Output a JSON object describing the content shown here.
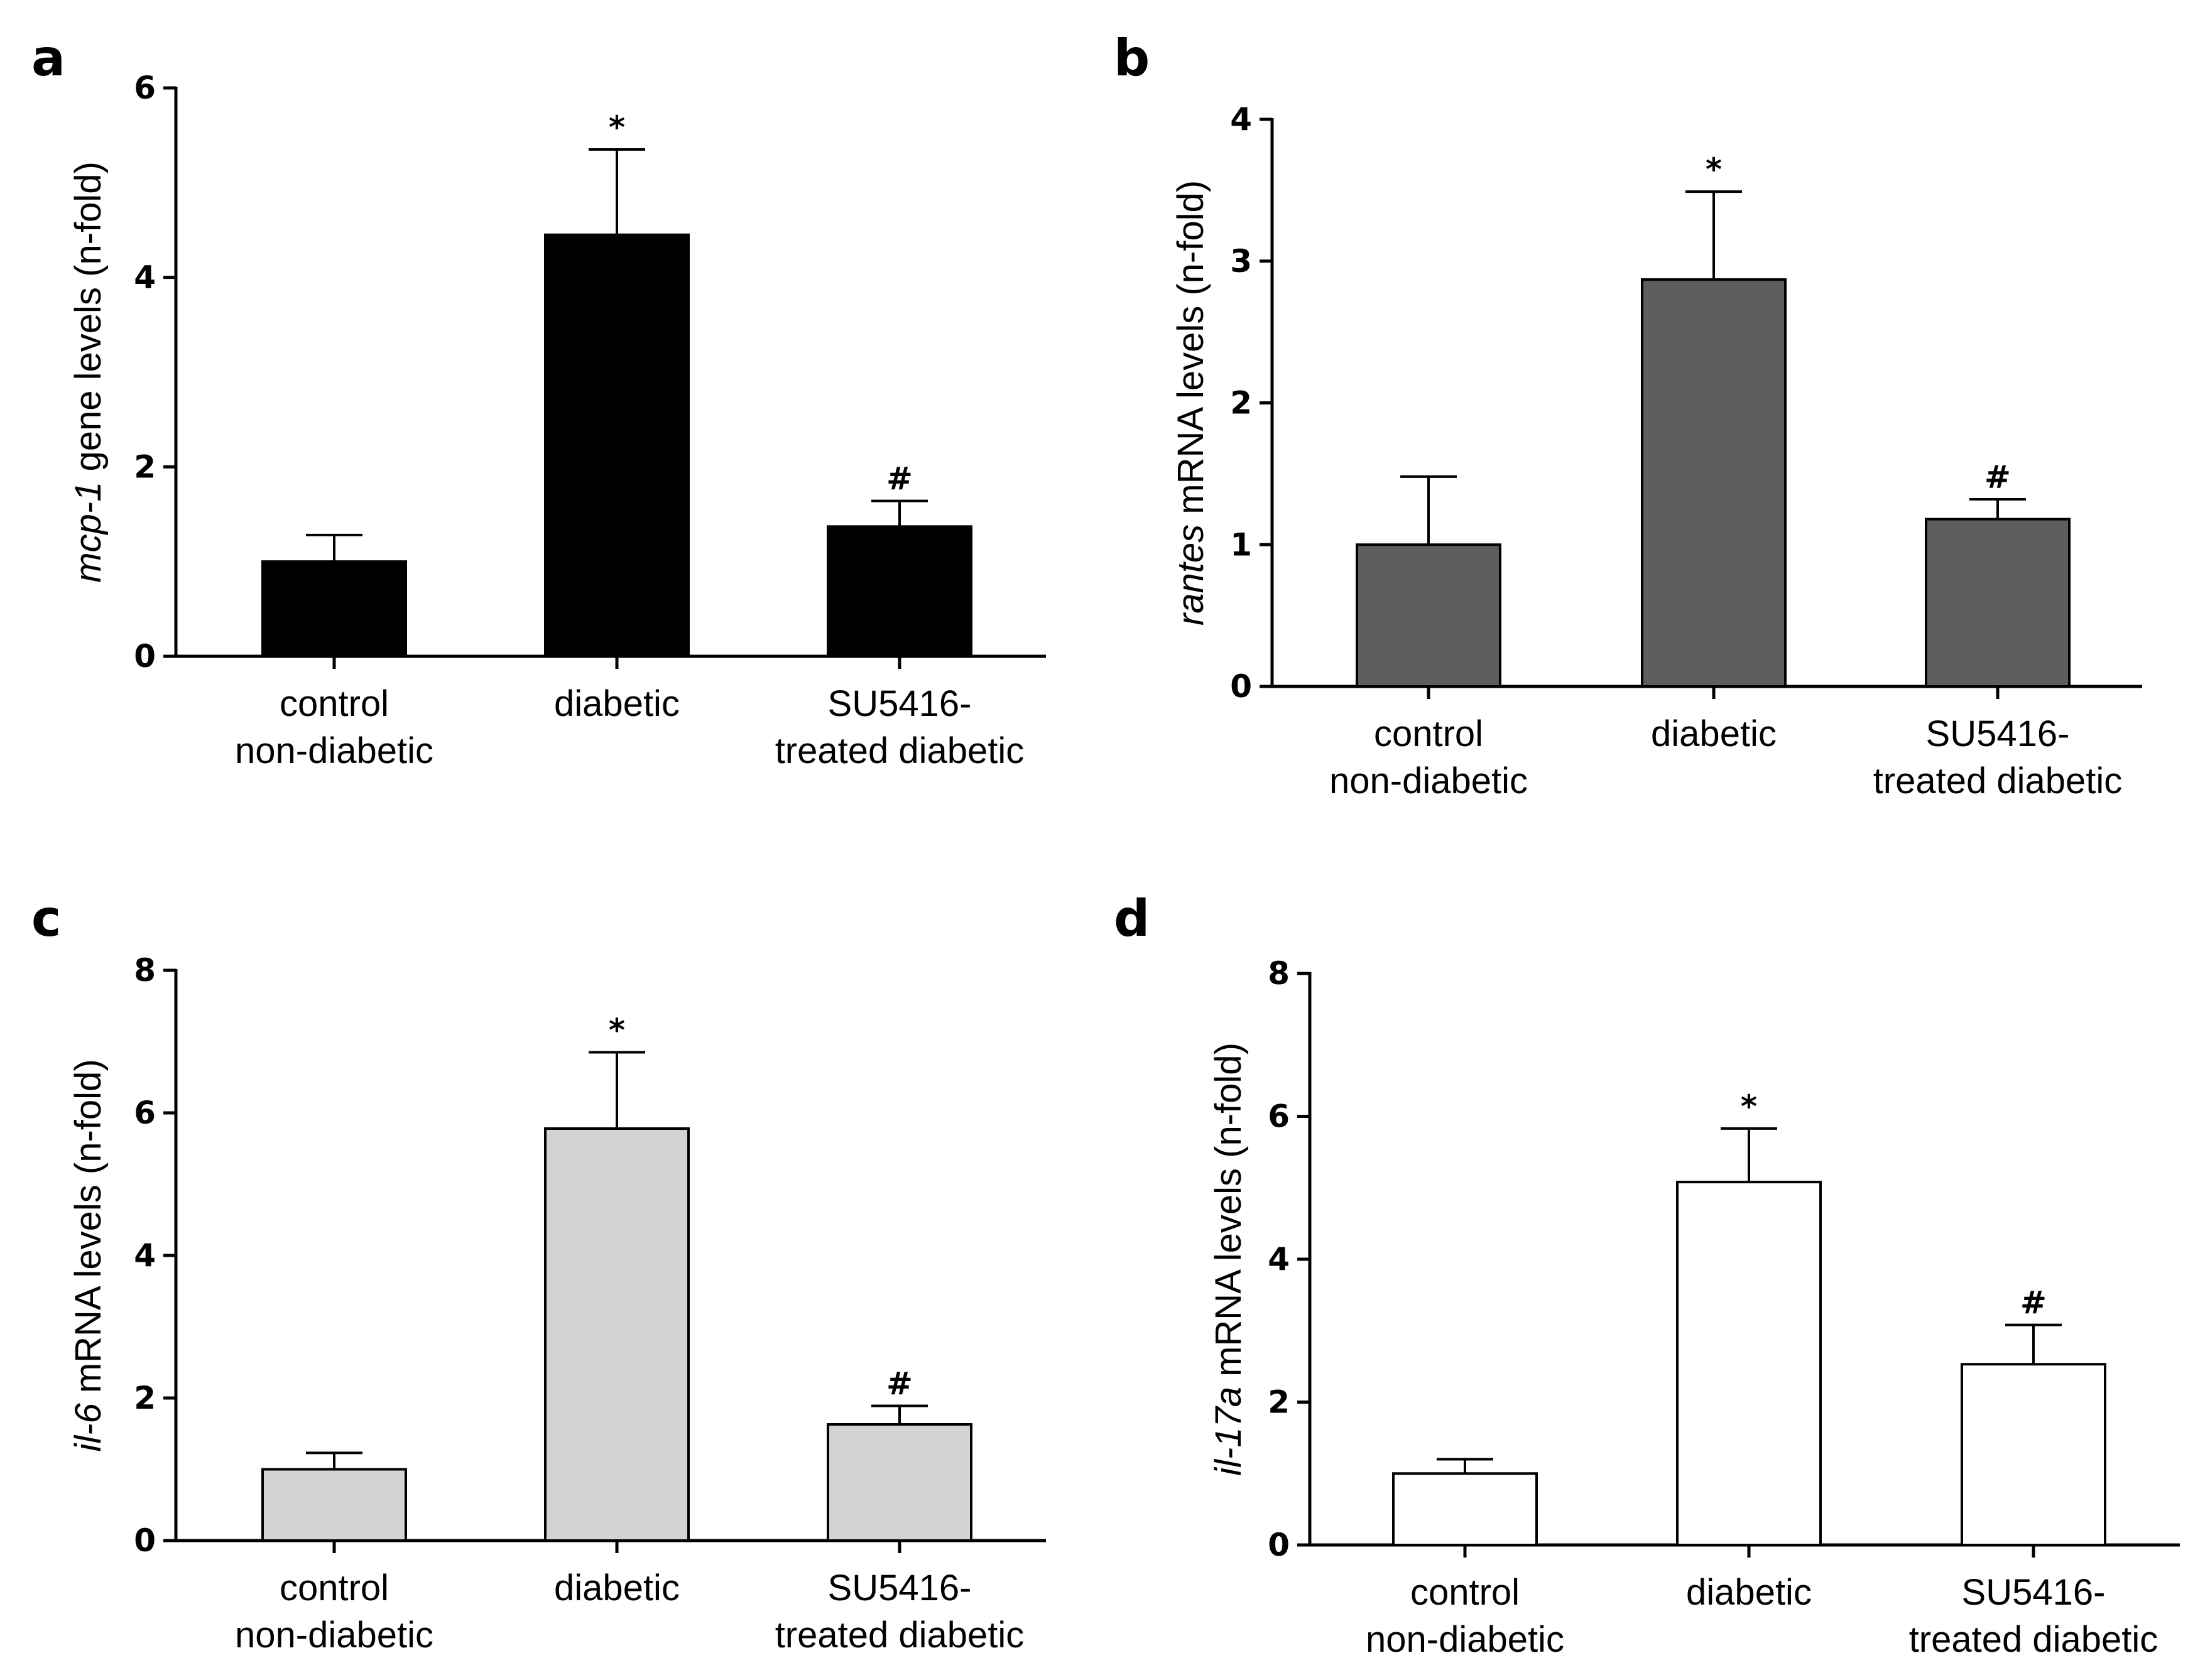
{
  "chart_data": [
    {
      "type": "bar",
      "panel": "a",
      "title": "",
      "ylabel_gene": "mcp-1",
      "ylabel_rest": " gene levels (n-fold)",
      "xlabel": "",
      "ylim": [
        0,
        6
      ],
      "yticks": [
        0,
        2,
        4,
        6
      ],
      "bar_color": "#000000",
      "categories": [
        [
          "control",
          "non-diabetic"
        ],
        [
          "diabetic"
        ],
        [
          "SU5416-",
          "treated diabetic"
        ]
      ],
      "values": [
        1.0,
        4.45,
        1.37
      ],
      "errors": [
        0.28,
        0.9,
        0.27
      ],
      "annotations": [
        "",
        "*",
        "#"
      ]
    },
    {
      "type": "bar",
      "panel": "b",
      "title": "",
      "ylabel_gene": "rantes",
      "ylabel_rest": " mRNA levels (n-fold)",
      "xlabel": "",
      "ylim": [
        0,
        4
      ],
      "yticks": [
        0,
        1,
        2,
        3,
        4
      ],
      "bar_color": "#5e5e5e",
      "categories": [
        [
          "control",
          "non-diabetic"
        ],
        [
          "diabetic"
        ],
        [
          "SU5416-",
          "treated diabetic"
        ]
      ],
      "values": [
        1.0,
        2.87,
        1.18
      ],
      "errors": [
        0.48,
        0.62,
        0.14
      ],
      "annotations": [
        "",
        "*",
        "#"
      ]
    },
    {
      "type": "bar",
      "panel": "c",
      "title": "",
      "ylabel_gene": "il-6",
      "ylabel_rest": " mRNA levels (n-fold)",
      "xlabel": "",
      "ylim": [
        0,
        8
      ],
      "yticks": [
        0,
        2,
        4,
        6,
        8
      ],
      "bar_color": "#d3d3d3",
      "categories": [
        [
          "control",
          "non-diabetic"
        ],
        [
          "diabetic"
        ],
        [
          "SU5416-",
          "treated diabetic"
        ]
      ],
      "values": [
        1.0,
        5.78,
        1.63
      ],
      "errors": [
        0.23,
        1.07,
        0.26
      ],
      "annotations": [
        "",
        "*",
        "#"
      ]
    },
    {
      "type": "bar",
      "panel": "d",
      "title": "",
      "ylabel_gene": "il-17a",
      "ylabel_rest": " mRNA levels (n-fold)",
      "xlabel": "",
      "ylim": [
        0,
        8
      ],
      "yticks": [
        0,
        2,
        4,
        6,
        8
      ],
      "bar_color": "#ffffff",
      "categories": [
        [
          "control",
          "non-diabetic"
        ],
        [
          "diabetic"
        ],
        [
          "SU5416-",
          "treated diabetic"
        ]
      ],
      "values": [
        1.0,
        5.08,
        2.53
      ],
      "errors": [
        0.2,
        0.75,
        0.55
      ],
      "annotations": [
        "",
        "*",
        "#"
      ]
    }
  ]
}
